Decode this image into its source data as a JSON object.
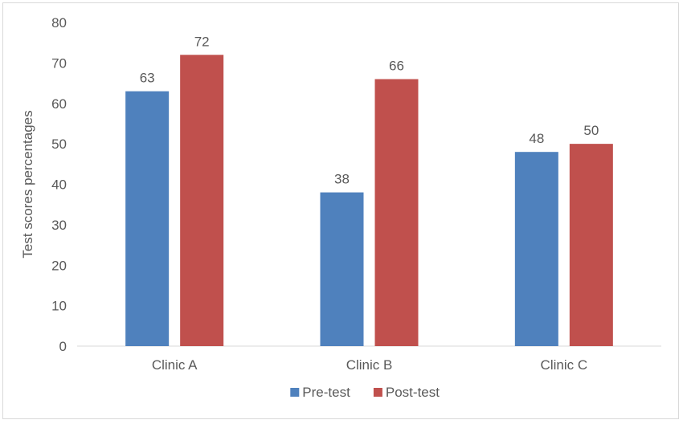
{
  "chart_data": {
    "type": "bar",
    "title": "",
    "xlabel": "",
    "ylabel": "Test scores percentages",
    "ylim": [
      0,
      80
    ],
    "ytick_step": 10,
    "categories": [
      "Clinic A",
      "Clinic B",
      "Clinic C"
    ],
    "series": [
      {
        "name": "Pre-test",
        "values": [
          63,
          38,
          48
        ],
        "color": "#4f81bd"
      },
      {
        "name": "Post-test",
        "values": [
          72,
          66,
          50
        ],
        "color": "#c0504d"
      }
    ],
    "data_labels": true,
    "grid": false,
    "legend_position": "bottom"
  }
}
